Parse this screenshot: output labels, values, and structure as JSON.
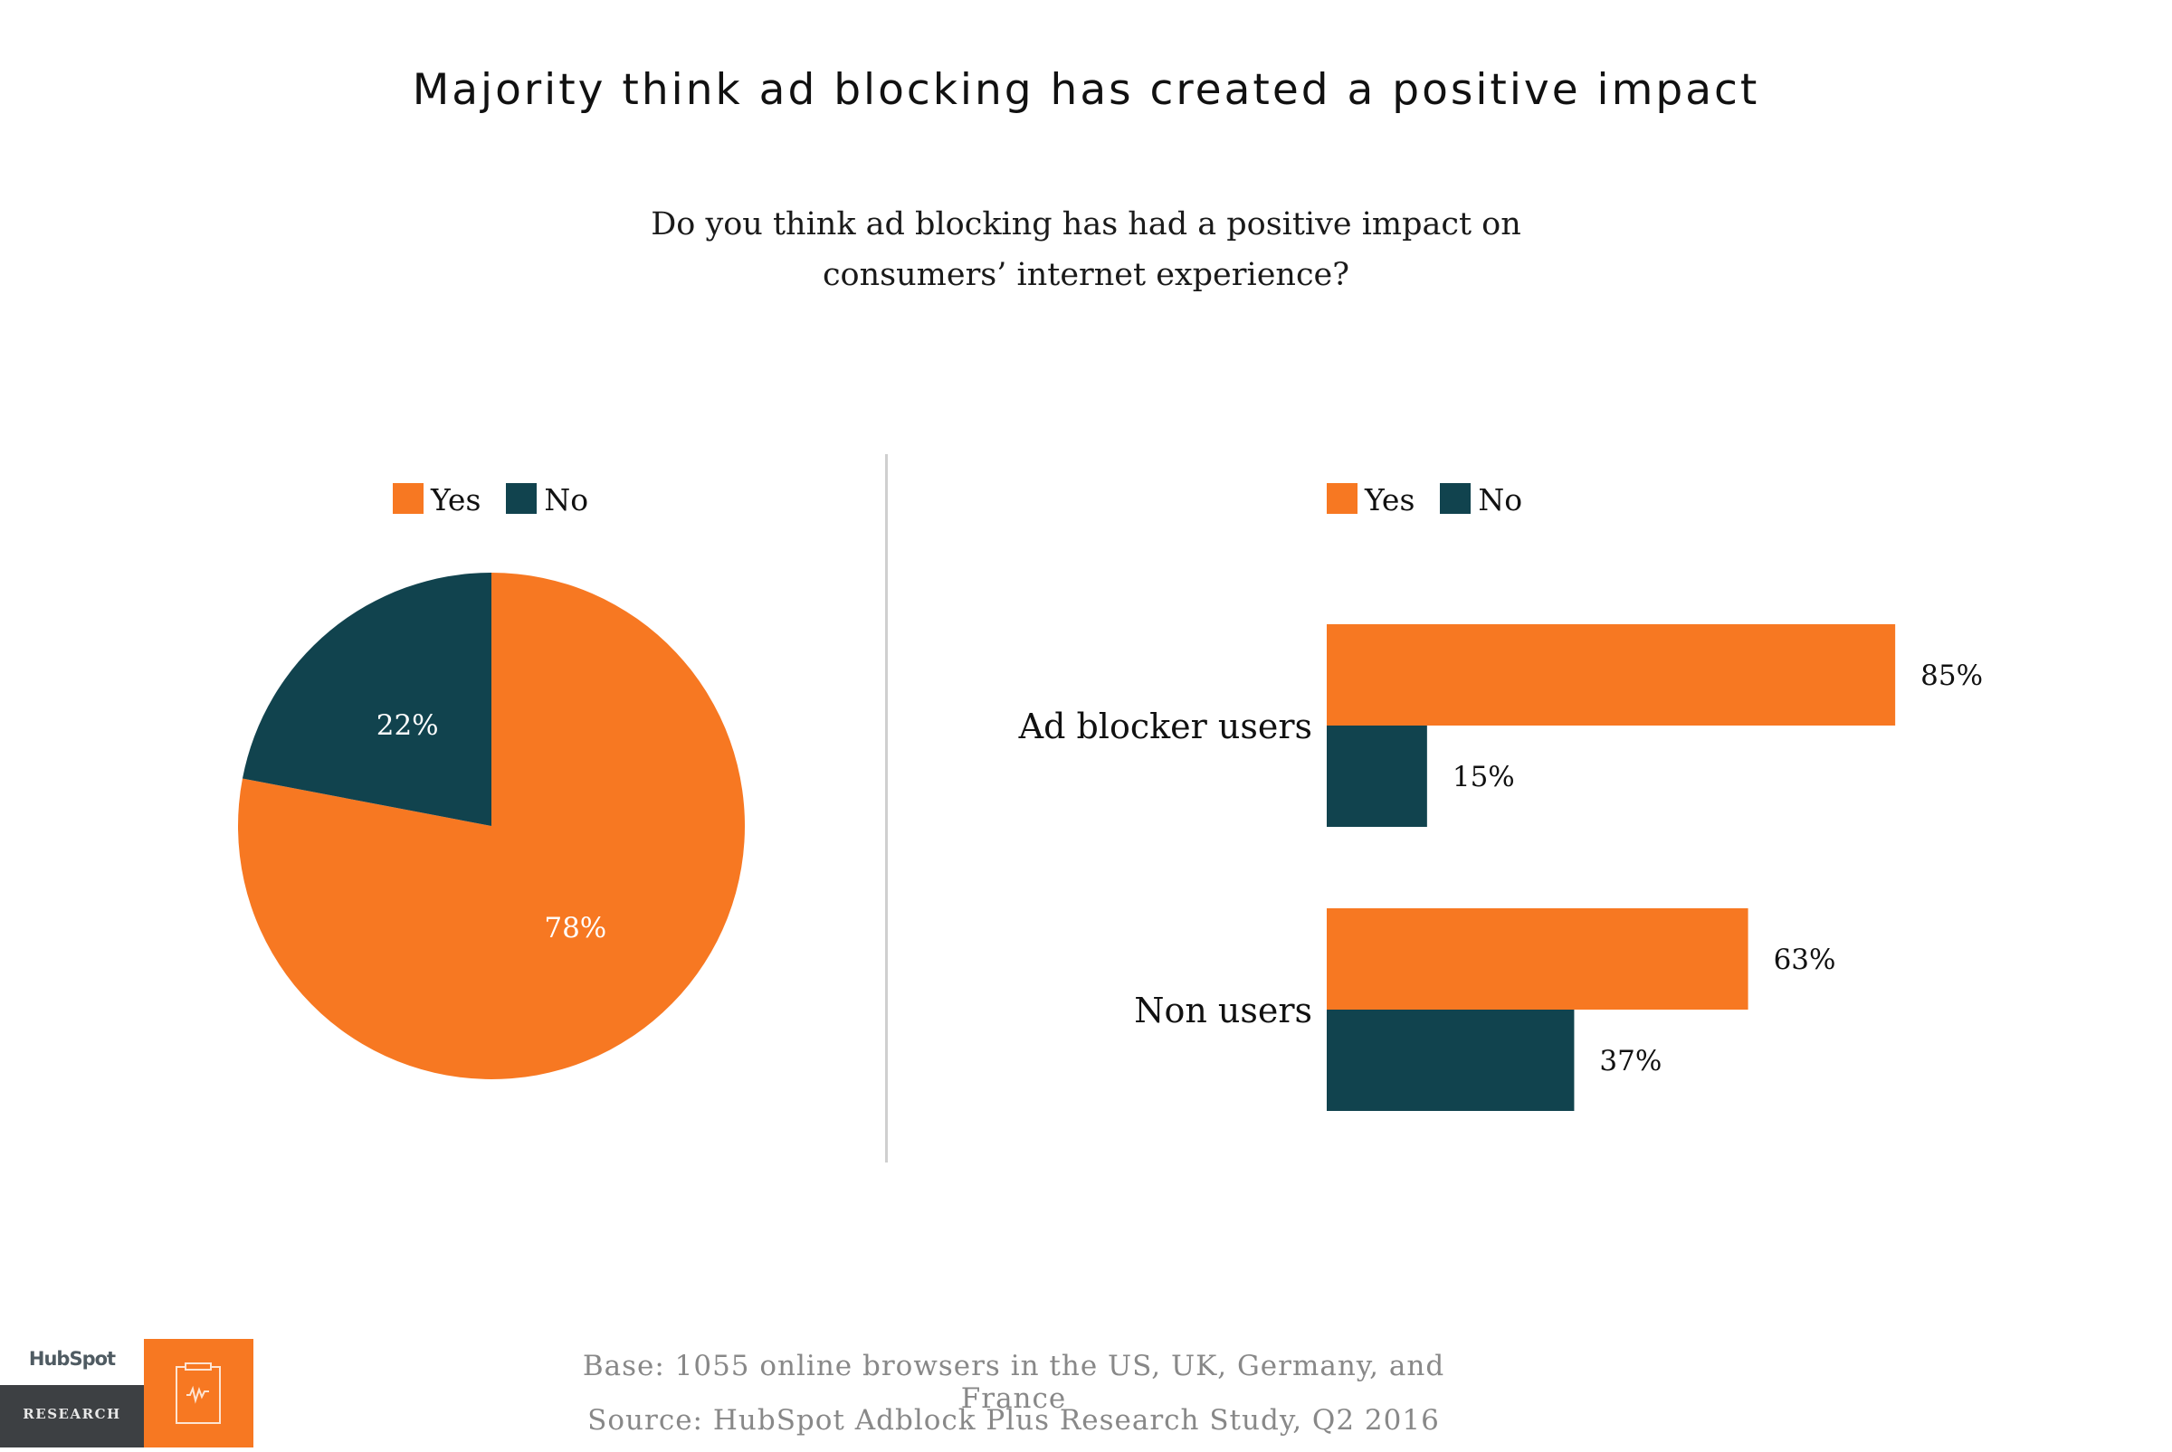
{
  "header": {
    "title": "Majority think ad blocking has created a positive impact",
    "question_line1": "Do you think ad blocking has had a positive impact on",
    "question_line2": "consumers’ internet experience?"
  },
  "colors": {
    "yes": "#F77822",
    "no": "#11434E",
    "divider": "#CFCFCF",
    "footer_text": "#888888"
  },
  "legend": {
    "yes_label": "Yes",
    "no_label": "No"
  },
  "chart_data": [
    {
      "type": "pie",
      "title": "",
      "categories": [
        "Yes",
        "No"
      ],
      "values": [
        78,
        22
      ],
      "labels": [
        "78%",
        "22%"
      ],
      "legend": "top",
      "start": "12 o'clock, clockwise"
    },
    {
      "type": "bar",
      "orientation": "horizontal",
      "title": "",
      "categories": [
        "Ad blocker users",
        "Non users"
      ],
      "series": [
        {
          "name": "Yes",
          "values": [
            85,
            63
          ],
          "labels": [
            "85%",
            "63%"
          ]
        },
        {
          "name": "No",
          "values": [
            15,
            37
          ],
          "labels": [
            "15%",
            "37%"
          ]
        }
      ],
      "xlim": [
        0,
        100
      ],
      "grid": false,
      "axes_visible": false,
      "legend": "top-left"
    }
  ],
  "footer": {
    "base": "Base: 1055 online browsers in the US, UK, Germany, and France",
    "source": "Source: HubSpot Adblock Plus Research Study, Q2 2016",
    "logo_text": "HubSpot",
    "logo_subtext": "RESEARCH",
    "badge_icon": "clipboard-pulse-icon"
  }
}
